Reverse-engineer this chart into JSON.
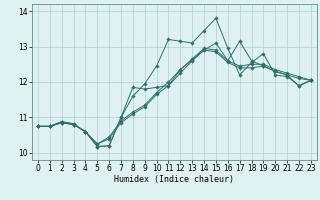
{
  "xlabel": "Humidex (Indice chaleur)",
  "bg_color": "#dff0f0",
  "grid_color": "#afd0d0",
  "line_color": "#2d7068",
  "xlim": [
    -0.5,
    23.5
  ],
  "ylim": [
    9.8,
    14.2
  ],
  "yticks": [
    10,
    11,
    12,
    13,
    14
  ],
  "xticks": [
    0,
    1,
    2,
    3,
    4,
    5,
    6,
    7,
    8,
    9,
    10,
    11,
    12,
    13,
    14,
    15,
    16,
    17,
    18,
    19,
    20,
    21,
    22,
    23
  ],
  "line1_x": [
    0,
    1,
    2,
    3,
    4,
    5,
    6,
    7,
    8,
    9,
    10,
    11,
    12,
    13,
    14,
    15,
    16,
    17,
    18,
    19,
    20,
    21,
    22,
    23
  ],
  "line1_y": [
    10.75,
    10.75,
    10.85,
    10.8,
    10.6,
    10.25,
    10.45,
    10.9,
    11.15,
    11.35,
    11.7,
    12.0,
    12.35,
    12.65,
    12.95,
    12.9,
    12.6,
    12.45,
    12.5,
    12.5,
    12.35,
    12.25,
    12.15,
    12.05
  ],
  "line2_x": [
    0,
    1,
    2,
    3,
    4,
    5,
    6,
    7,
    8,
    9,
    10,
    11,
    12,
    13,
    14,
    15,
    16,
    17,
    18,
    19,
    20,
    21,
    22,
    23
  ],
  "line2_y": [
    10.75,
    10.75,
    10.85,
    10.8,
    10.6,
    10.25,
    10.4,
    10.85,
    11.1,
    11.3,
    11.65,
    11.9,
    12.25,
    12.6,
    12.9,
    12.85,
    12.55,
    12.4,
    12.4,
    12.45,
    12.3,
    12.2,
    12.1,
    12.05
  ],
  "line3_x": [
    0,
    1,
    2,
    3,
    4,
    5,
    6,
    7,
    8,
    9,
    10,
    11,
    12,
    13,
    14,
    15,
    16,
    17,
    18,
    19,
    20,
    21,
    22,
    23
  ],
  "line3_y": [
    10.75,
    10.75,
    10.88,
    10.82,
    10.6,
    10.18,
    10.2,
    11.0,
    11.85,
    11.8,
    11.85,
    11.9,
    12.35,
    12.62,
    12.9,
    13.1,
    12.6,
    13.15,
    12.6,
    12.45,
    12.3,
    12.2,
    11.88,
    12.05
  ],
  "line4_x": [
    0,
    1,
    2,
    3,
    4,
    5,
    6,
    7,
    8,
    9,
    10,
    11,
    12,
    13,
    14,
    15,
    16,
    17,
    18,
    19,
    20,
    21,
    22,
    23
  ],
  "line4_y": [
    10.75,
    10.75,
    10.88,
    10.82,
    10.6,
    10.18,
    10.2,
    11.0,
    11.6,
    11.95,
    12.45,
    13.2,
    13.15,
    13.1,
    13.45,
    13.8,
    12.95,
    12.2,
    12.55,
    12.8,
    12.2,
    12.15,
    11.9,
    12.05
  ]
}
